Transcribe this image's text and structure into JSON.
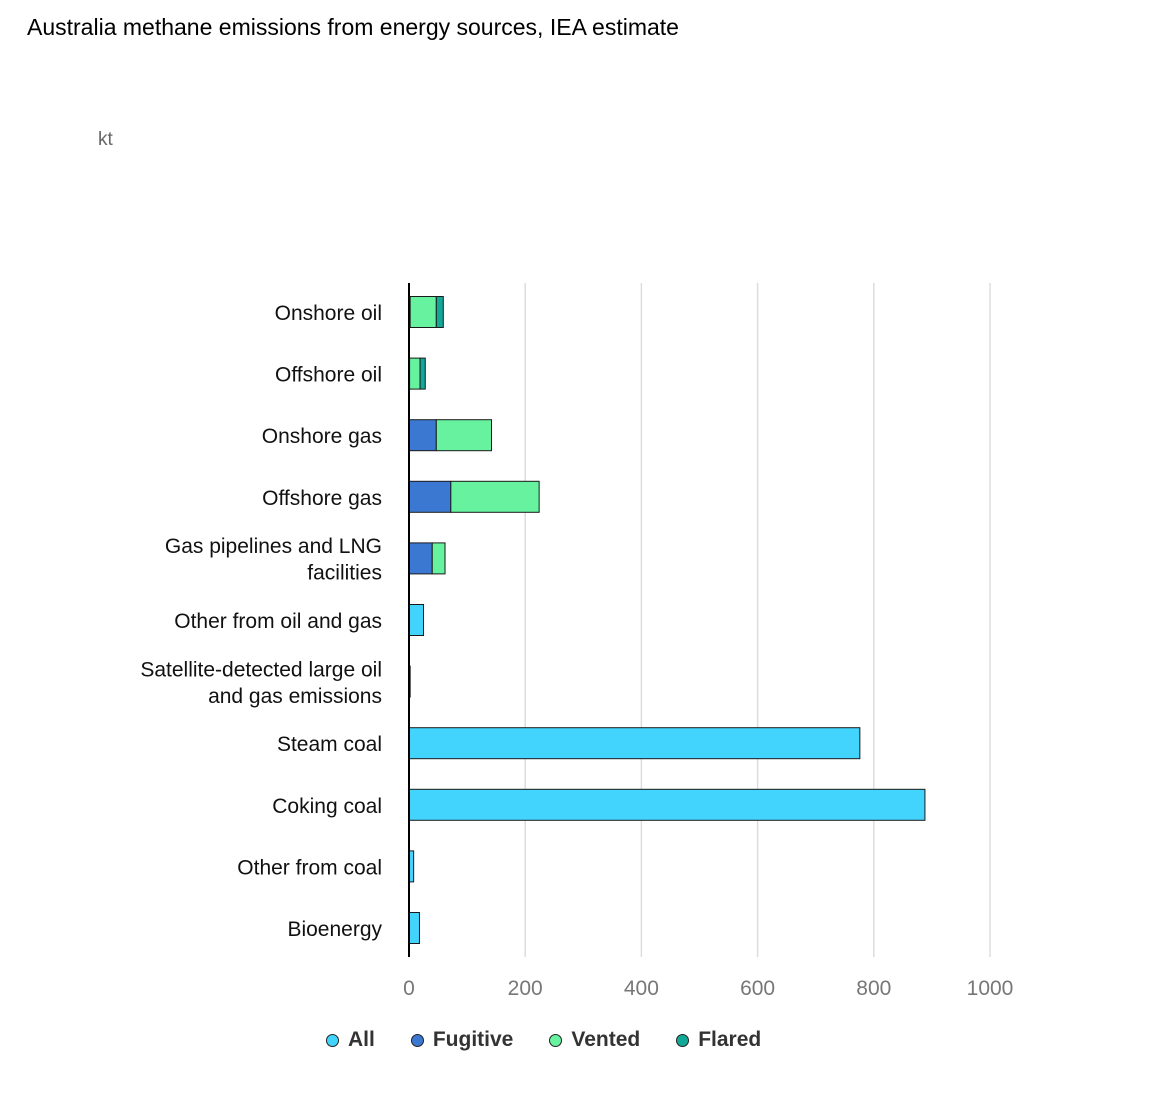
{
  "header": {
    "title": "Australia methane emissions from energy sources, IEA estimate",
    "unit": "kt"
  },
  "colors": {
    "All": "#42d4fc",
    "Fugitive": "#3b78d2",
    "Vented": "#66f29e",
    "Flared": "#12a898",
    "grid": "#dddddd",
    "axis": "#000000"
  },
  "chart_data": {
    "type": "bar",
    "orientation": "horizontal",
    "stacked": true,
    "categories": [
      "Onshore oil",
      "Offshore oil",
      "Onshore gas",
      "Offshore gas",
      "Gas pipelines and LNG facilities",
      "Other from oil and gas",
      "Satellite-detected large oil and gas emissions",
      "Steam coal",
      "Coking coal",
      "Other from coal",
      "Bioenergy"
    ],
    "category_lines": [
      [
        "Onshore oil"
      ],
      [
        "Offshore oil"
      ],
      [
        "Onshore gas"
      ],
      [
        "Offshore gas"
      ],
      [
        "Gas pipelines and LNG",
        "facilities"
      ],
      [
        "Other from oil and gas"
      ],
      [
        "Satellite-detected large oil",
        "and gas emissions"
      ],
      [
        "Steam coal"
      ],
      [
        "Coking coal"
      ],
      [
        "Other from coal"
      ],
      [
        "Bioenergy"
      ]
    ],
    "series": [
      {
        "name": "All",
        "values": [
          0,
          0,
          0,
          0,
          0,
          25,
          2,
          776,
          888,
          8,
          18
        ]
      },
      {
        "name": "Fugitive",
        "values": [
          2,
          1,
          47,
          72,
          40,
          0,
          0,
          0,
          0,
          0,
          0
        ]
      },
      {
        "name": "Vented",
        "values": [
          45,
          18,
          95,
          152,
          22,
          0,
          0,
          0,
          0,
          0,
          0
        ]
      },
      {
        "name": "Flared",
        "values": [
          12,
          9,
          0,
          0,
          0,
          0,
          0,
          0,
          0,
          0,
          0
        ]
      }
    ],
    "xlim": [
      0,
      1000
    ],
    "xticks": [
      0,
      200,
      400,
      600,
      800,
      1000
    ],
    "xlabel": "",
    "ylabel": "",
    "grid": true,
    "legend_position": "bottom"
  }
}
